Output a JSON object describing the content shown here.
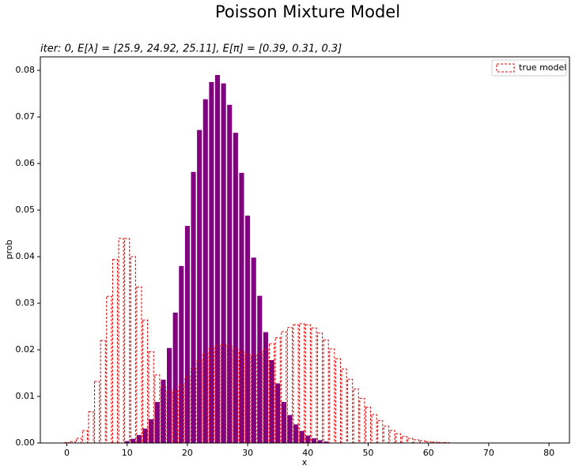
{
  "chart_data": {
    "type": "bar",
    "title": "Poisson Mixture Model",
    "subtitle": "iter: 0, E[λ] = [25.9, 24.92, 25.11], E[π] = [0.39, 0.31, 0.3]",
    "xlabel": "x",
    "ylabel": "prob",
    "xlim": [
      -4.4,
      83.4
    ],
    "ylim": [
      0,
      0.0829
    ],
    "xticks": [
      0,
      10,
      20,
      30,
      40,
      50,
      60,
      70,
      80
    ],
    "yticks": [
      {
        "value": 0,
        "label": "0.00"
      },
      0.01,
      0.02,
      0.03,
      0.04,
      0.05,
      0.06,
      0.07,
      0.08
    ],
    "legend": "upper right",
    "series": [
      {
        "color": "#800080",
        "fill": true,
        "x": [
          10,
          11,
          12,
          13,
          14,
          15,
          16,
          17,
          18,
          19,
          20,
          21,
          22,
          23,
          24,
          25,
          26,
          27,
          28,
          29,
          30,
          31,
          32,
          33,
          34,
          35,
          36,
          37,
          38,
          39,
          40,
          41,
          42,
          43
        ],
        "values": [
          0.0004,
          0.0009,
          0.0017,
          0.0031,
          0.0051,
          0.0088,
          0.0136,
          0.0204,
          0.028,
          0.038,
          0.0466,
          0.0582,
          0.0672,
          0.0738,
          0.0775,
          0.079,
          0.0772,
          0.0726,
          0.0666,
          0.058,
          0.0488,
          0.0398,
          0.0316,
          0.0238,
          0.0178,
          0.0128,
          0.0088,
          0.006,
          0.004,
          0.0026,
          0.0016,
          0.001,
          0.0006,
          0.0003
        ]
      },
      {
        "name": "true model",
        "color": "#dd0000",
        "fill": false,
        "dashed": true,
        "x": [
          0,
          1,
          2,
          3,
          4,
          5,
          6,
          7,
          8,
          9,
          10,
          11,
          12,
          13,
          14,
          15,
          16,
          17,
          18,
          19,
          20,
          21,
          22,
          23,
          24,
          25,
          26,
          27,
          28,
          29,
          30,
          31,
          32,
          33,
          34,
          35,
          36,
          37,
          38,
          39,
          40,
          41,
          42,
          43,
          44,
          45,
          46,
          47,
          48,
          49,
          50,
          51,
          52,
          53,
          54,
          55,
          56,
          57,
          58,
          59,
          60,
          61,
          62,
          63
        ],
        "values": [
          0.0001,
          0.0003,
          0.001,
          0.0027,
          0.0067,
          0.0132,
          0.022,
          0.0315,
          0.0394,
          0.0439,
          0.0439,
          0.04,
          0.0335,
          0.0264,
          0.0196,
          0.0146,
          0.0121,
          0.011,
          0.0113,
          0.0125,
          0.0142,
          0.016,
          0.0177,
          0.0192,
          0.0203,
          0.0209,
          0.0211,
          0.0208,
          0.0202,
          0.0196,
          0.019,
          0.0188,
          0.0192,
          0.0201,
          0.0213,
          0.0226,
          0.0239,
          0.0248,
          0.0254,
          0.0256,
          0.0254,
          0.0247,
          0.0236,
          0.0221,
          0.0202,
          0.0181,
          0.0159,
          0.0137,
          0.0116,
          0.0096,
          0.0077,
          0.0061,
          0.0048,
          0.0036,
          0.0027,
          0.002,
          0.0014,
          0.001,
          0.0007,
          0.0005,
          0.0003,
          0.0002,
          0.0001,
          0.0001
        ]
      }
    ]
  }
}
